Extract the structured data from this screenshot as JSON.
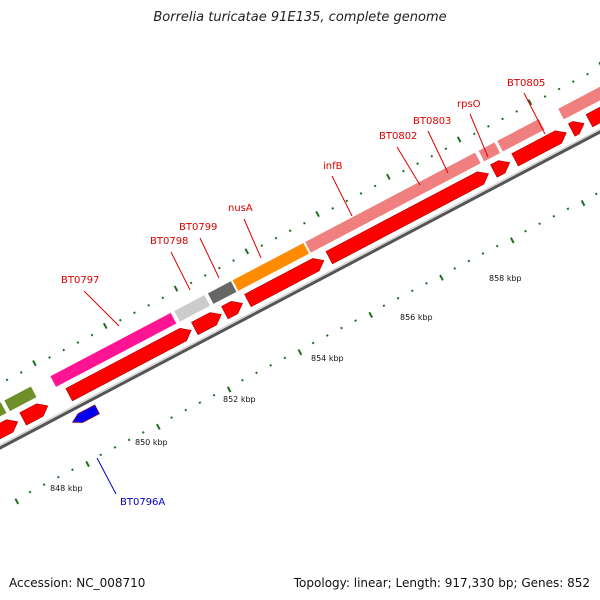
{
  "title": "Borrelia turicatae 91E135, complete genome",
  "accession": "Accession: NC_008710",
  "summary": "Topology: linear; Length: 917,330 bp; Genes: 852",
  "colors": {
    "label_red": "#dd0000",
    "label_blue": "#0000cc",
    "cds_red": "#ff0000",
    "tick_green": "#207020"
  },
  "scale_labels": [
    {
      "text": "848 kbp",
      "kbp": 848
    },
    {
      "text": "850 kbp",
      "kbp": 850
    },
    {
      "text": "852 kbp",
      "kbp": 852
    },
    {
      "text": "854 kbp",
      "kbp": 854
    },
    {
      "text": "856 kbp",
      "kbp": 856
    },
    {
      "text": "858 kbp",
      "kbp": 858
    }
  ],
  "gene_labels": [
    {
      "text": "BT0796A",
      "color": "#0000cc"
    },
    {
      "text": "BT0797",
      "color": "#dd0000"
    },
    {
      "text": "BT0798",
      "color": "#dd0000"
    },
    {
      "text": "BT0799",
      "color": "#dd0000"
    },
    {
      "text": "nusA",
      "color": "#dd0000"
    },
    {
      "text": "infB",
      "color": "#dd0000"
    },
    {
      "text": "BT0802",
      "color": "#dd0000"
    },
    {
      "text": "BT0803",
      "color": "#dd0000"
    },
    {
      "text": "rpsO",
      "color": "#dd0000"
    },
    {
      "text": "BT0805",
      "color": "#dd0000"
    }
  ]
}
